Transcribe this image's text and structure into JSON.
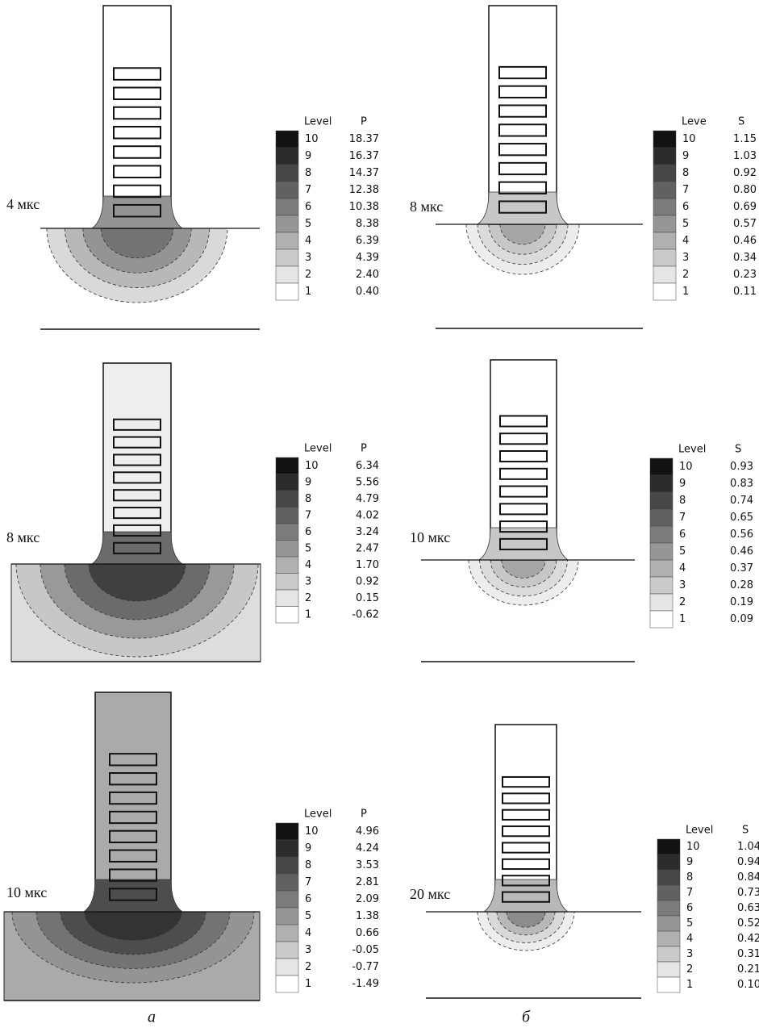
{
  "column_labels": [
    "а",
    "б"
  ],
  "panels": [
    {
      "time": "4 мкс",
      "legend": {
        "level_header": "Level",
        "quantity": "P",
        "levels": [
          {
            "level": "10",
            "value": "18.37"
          },
          {
            "level": "9",
            "value": "16.37"
          },
          {
            "level": "8",
            "value": "14.37"
          },
          {
            "level": "7",
            "value": "12.38"
          },
          {
            "level": "6",
            "value": "10.38"
          },
          {
            "level": "5",
            "value": "8.38"
          },
          {
            "level": "4",
            "value": "6.39"
          },
          {
            "level": "3",
            "value": "4.39"
          },
          {
            "level": "2",
            "value": "2.40"
          },
          {
            "level": "1",
            "value": "0.40"
          }
        ]
      }
    },
    {
      "time": "8 мкс",
      "legend": {
        "level_header": "Leve",
        "quantity": "S",
        "levels": [
          {
            "level": "10",
            "value": "1.15"
          },
          {
            "level": "9",
            "value": "1.03"
          },
          {
            "level": "8",
            "value": "0.92"
          },
          {
            "level": "7",
            "value": "0.80"
          },
          {
            "level": "6",
            "value": "0.69"
          },
          {
            "level": "5",
            "value": "0.57"
          },
          {
            "level": "4",
            "value": "0.46"
          },
          {
            "level": "3",
            "value": "0.34"
          },
          {
            "level": "2",
            "value": "0.23"
          },
          {
            "level": "1",
            "value": "0.11"
          }
        ]
      }
    },
    {
      "time": "8 мкс",
      "legend": {
        "level_header": "Level",
        "quantity": "P",
        "levels": [
          {
            "level": "10",
            "value": "6.34"
          },
          {
            "level": "9",
            "value": "5.56"
          },
          {
            "level": "8",
            "value": "4.79"
          },
          {
            "level": "7",
            "value": "4.02"
          },
          {
            "level": "6",
            "value": "3.24"
          },
          {
            "level": "5",
            "value": "2.47"
          },
          {
            "level": "4",
            "value": "1.70"
          },
          {
            "level": "3",
            "value": "0.92"
          },
          {
            "level": "2",
            "value": "0.15"
          },
          {
            "level": "1",
            "value": "-0.62"
          }
        ]
      }
    },
    {
      "time": "10 мкс",
      "legend": {
        "level_header": "Level",
        "quantity": "S",
        "levels": [
          {
            "level": "10",
            "value": "0.93"
          },
          {
            "level": "9",
            "value": "0.83"
          },
          {
            "level": "8",
            "value": "0.74"
          },
          {
            "level": "7",
            "value": "0.65"
          },
          {
            "level": "6",
            "value": "0.56"
          },
          {
            "level": "5",
            "value": "0.46"
          },
          {
            "level": "4",
            "value": "0.37"
          },
          {
            "level": "3",
            "value": "0.28"
          },
          {
            "level": "2",
            "value": "0.19"
          },
          {
            "level": "1",
            "value": "0.09"
          }
        ]
      }
    },
    {
      "time": "10 мкс",
      "legend": {
        "level_header": "Level",
        "quantity": "P",
        "levels": [
          {
            "level": "10",
            "value": "4.96"
          },
          {
            "level": "9",
            "value": "4.24"
          },
          {
            "level": "8",
            "value": "3.53"
          },
          {
            "level": "7",
            "value": "2.81"
          },
          {
            "level": "6",
            "value": "2.09"
          },
          {
            "level": "5",
            "value": "1.38"
          },
          {
            "level": "4",
            "value": "0.66"
          },
          {
            "level": "3",
            "value": "-0.05"
          },
          {
            "level": "2",
            "value": "-0.77"
          },
          {
            "level": "1",
            "value": "-1.49"
          }
        ]
      }
    },
    {
      "time": "20 мкс",
      "legend": {
        "level_header": "Level",
        "quantity": "S",
        "levels": [
          {
            "level": "10",
            "value": "1.04"
          },
          {
            "level": "9",
            "value": "0.94"
          },
          {
            "level": "8",
            "value": "0.84"
          },
          {
            "level": "7",
            "value": "0.73"
          },
          {
            "level": "6",
            "value": "0.63"
          },
          {
            "level": "5",
            "value": "0.52"
          },
          {
            "level": "4",
            "value": "0.42"
          },
          {
            "level": "3",
            "value": "0.31"
          },
          {
            "level": "2",
            "value": "0.21"
          },
          {
            "level": "1",
            "value": "0.10"
          }
        ]
      }
    }
  ]
}
